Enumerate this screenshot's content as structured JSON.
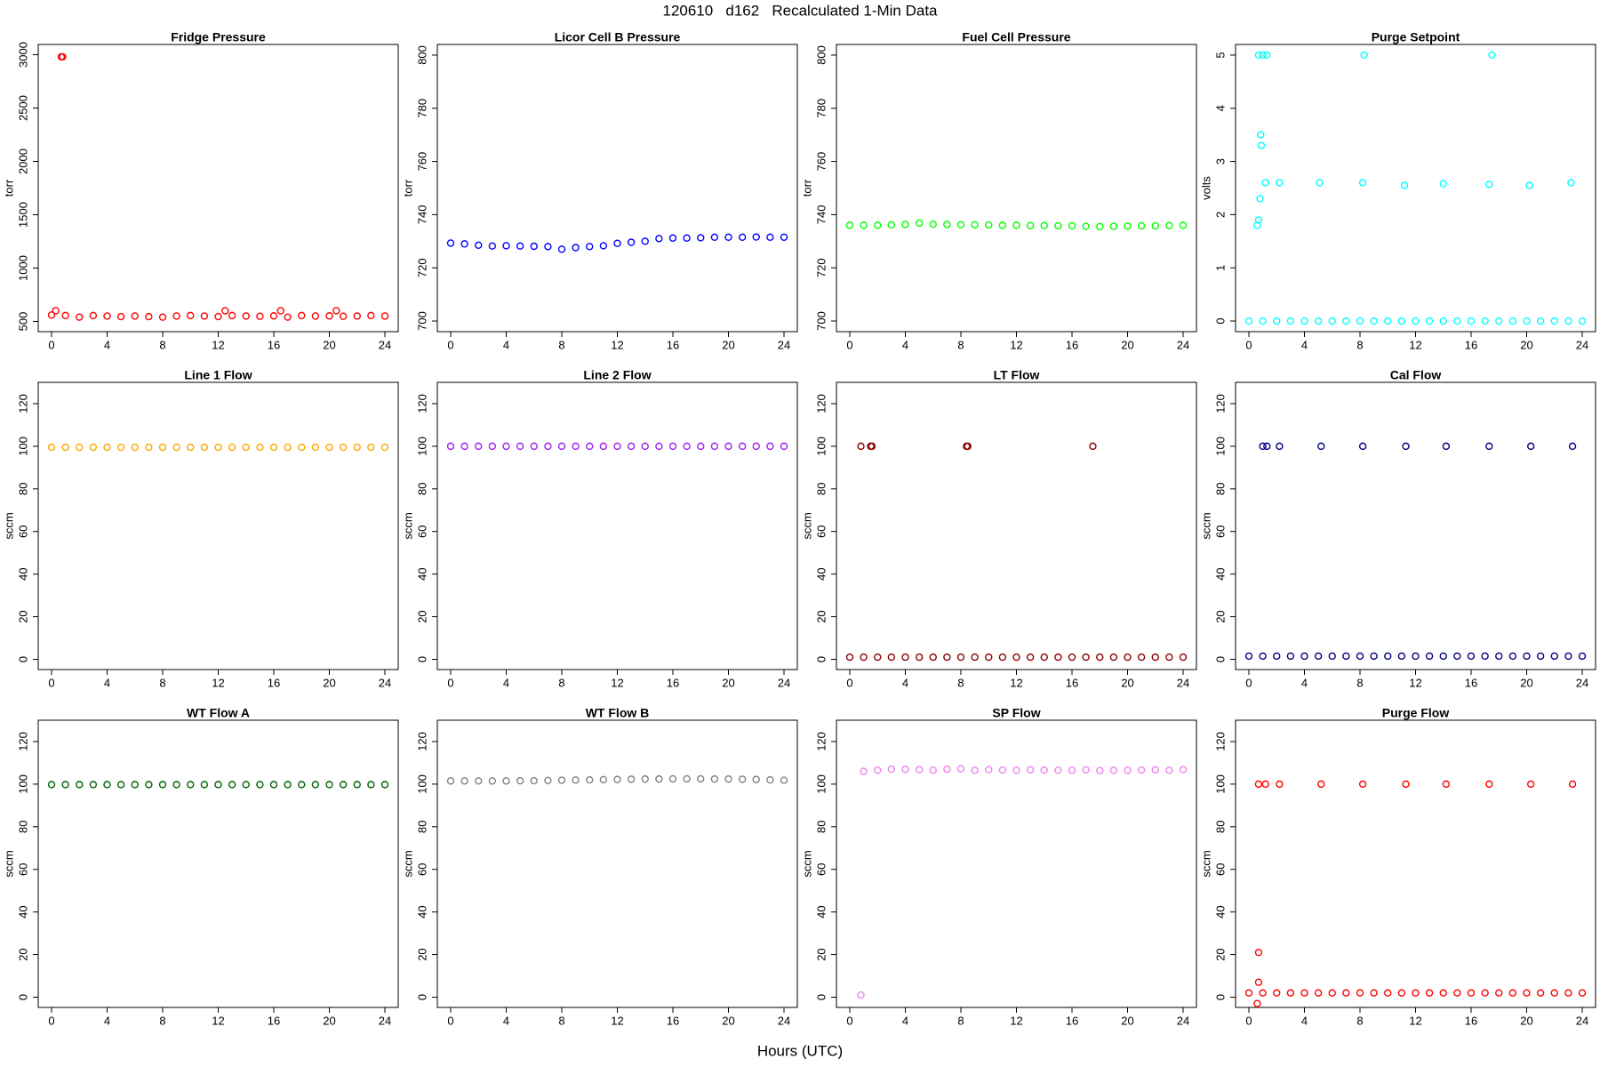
{
  "title": "120610   d162   Recalculated 1-Min Data",
  "x_label": "Hours (UTC)",
  "chart_data": [
    {
      "type": "scatter",
      "title": "Fridge Pressure",
      "y_label": "torr",
      "color": "#ff0000",
      "x": [
        0,
        1,
        2,
        3,
        4,
        5,
        6,
        7,
        8,
        9,
        10,
        11,
        12,
        13,
        14,
        15,
        16,
        17,
        18,
        19,
        20,
        21,
        22,
        23,
        24,
        0.3,
        0.7,
        0.8,
        12.5,
        16.5,
        20.5
      ],
      "values": [
        560,
        555,
        540,
        555,
        550,
        545,
        550,
        545,
        540,
        550,
        555,
        550,
        545,
        555,
        550,
        548,
        552,
        540,
        555,
        550,
        552,
        548,
        550,
        555,
        550,
        600,
        2980,
        2980,
        600,
        600,
        600
      ],
      "xlim": [
        -0.96,
        24.96
      ],
      "ylim": [
        404,
        3096
      ],
      "xticks": [
        0,
        4,
        8,
        12,
        16,
        20,
        24
      ],
      "yticks": [
        500,
        1000,
        1500,
        2000,
        2500,
        3000
      ]
    },
    {
      "type": "scatter",
      "title": "Licor Cell B Pressure",
      "y_label": "torr",
      "color": "#0000ff",
      "x": [
        0,
        1,
        2,
        3,
        4,
        5,
        6,
        7,
        8,
        9,
        10,
        11,
        12,
        13,
        14,
        15,
        16,
        17,
        18,
        19,
        20,
        21,
        22,
        23,
        24
      ],
      "values": [
        729.3,
        729,
        728.5,
        728.2,
        728.3,
        728.2,
        728.1,
        728,
        727,
        727.6,
        728,
        728.3,
        729.2,
        729.6,
        730,
        731,
        731.2,
        731.2,
        731.3,
        731.5,
        731.5,
        731.5,
        731.6,
        731.5,
        731.5
      ],
      "xlim": [
        -0.96,
        24.96
      ],
      "ylim": [
        696,
        804
      ],
      "xticks": [
        0,
        4,
        8,
        12,
        16,
        20,
        24
      ],
      "yticks": [
        700,
        720,
        740,
        760,
        780,
        800
      ]
    },
    {
      "type": "scatter",
      "title": "Fuel Cell Pressure",
      "y_label": "torr",
      "color": "#00ff00",
      "x": [
        0,
        1,
        2,
        3,
        4,
        5,
        6,
        7,
        8,
        9,
        10,
        11,
        12,
        13,
        14,
        15,
        16,
        17,
        18,
        19,
        20,
        21,
        22,
        23,
        24
      ],
      "values": [
        736,
        736,
        736,
        736.2,
        736.3,
        736.8,
        736.4,
        736.3,
        736.2,
        736.2,
        736.1,
        736,
        736,
        735.9,
        735.9,
        735.8,
        735.8,
        735.6,
        735.5,
        735.6,
        735.7,
        735.8,
        735.8,
        735.9,
        736
      ],
      "xlim": [
        -0.96,
        24.96
      ],
      "ylim": [
        696,
        804
      ],
      "xticks": [
        0,
        4,
        8,
        12,
        16,
        20,
        24
      ],
      "yticks": [
        700,
        720,
        740,
        760,
        780,
        800
      ]
    },
    {
      "type": "scatter",
      "title": "Purge Setpoint",
      "y_label": "volts",
      "color": "#00ffff",
      "x": [
        0,
        1,
        2,
        3,
        4,
        5,
        6,
        7,
        8,
        9,
        10,
        11,
        12,
        13,
        14,
        15,
        16,
        17,
        18,
        19,
        20,
        21,
        22,
        23,
        24,
        0.7,
        1.0,
        1.3,
        0.7,
        0.6,
        0.8,
        0.9,
        0.85,
        1.2,
        2.2,
        5.1,
        8.3,
        8.2,
        11.2,
        14,
        17.5,
        17.3,
        20.2,
        23.2
      ],
      "values": [
        0,
        0,
        0,
        0,
        0,
        0,
        0,
        0,
        0,
        0,
        0,
        0,
        0,
        0,
        0,
        0,
        0,
        0,
        0,
        0,
        0,
        0,
        0,
        0,
        0,
        5,
        5,
        5,
        1.9,
        1.8,
        2.3,
        3.3,
        3.5,
        2.6,
        2.6,
        2.6,
        5,
        2.6,
        2.55,
        2.58,
        5,
        2.57,
        2.55,
        2.6
      ],
      "xlim": [
        -0.96,
        24.96
      ],
      "ylim": [
        -0.2,
        5.2
      ],
      "xticks": [
        0,
        4,
        8,
        12,
        16,
        20,
        24
      ],
      "yticks": [
        0,
        1,
        2,
        3,
        4,
        5
      ]
    },
    {
      "type": "scatter",
      "title": "Line 1 Flow",
      "y_label": "sccm",
      "color": "#ffa500",
      "x": [
        0,
        1,
        2,
        3,
        4,
        5,
        6,
        7,
        8,
        9,
        10,
        11,
        12,
        13,
        14,
        15,
        16,
        17,
        18,
        19,
        20,
        21,
        22,
        23,
        24
      ],
      "values": [
        99.5,
        99.5,
        99.5,
        99.5,
        99.5,
        99.5,
        99.5,
        99.5,
        99.5,
        99.5,
        99.5,
        99.5,
        99.5,
        99.5,
        99.5,
        99.5,
        99.5,
        99.5,
        99.5,
        99.5,
        99.5,
        99.5,
        99.5,
        99.5,
        99.5
      ],
      "xlim": [
        -0.96,
        24.96
      ],
      "ylim": [
        -4.8,
        130
      ],
      "xticks": [
        0,
        4,
        8,
        12,
        16,
        20,
        24
      ],
      "yticks": [
        0,
        20,
        40,
        60,
        80,
        100,
        120
      ]
    },
    {
      "type": "scatter",
      "title": "Line 2 Flow",
      "y_label": "sccm",
      "color": "#a020f0",
      "x": [
        0,
        1,
        2,
        3,
        4,
        5,
        6,
        7,
        8,
        9,
        10,
        11,
        12,
        13,
        14,
        15,
        16,
        17,
        18,
        19,
        20,
        21,
        22,
        23,
        24
      ],
      "values": [
        100,
        100,
        100,
        100,
        100,
        100,
        100,
        100,
        100,
        100,
        100,
        100,
        100,
        100,
        100,
        100,
        100,
        100,
        100,
        100,
        100,
        100,
        100,
        100,
        100
      ],
      "xlim": [
        -0.96,
        24.96
      ],
      "ylim": [
        -4.8,
        130
      ],
      "xticks": [
        0,
        4,
        8,
        12,
        16,
        20,
        24
      ],
      "yticks": [
        0,
        20,
        40,
        60,
        80,
        100,
        120
      ]
    },
    {
      "type": "scatter",
      "title": "LT Flow",
      "y_label": "sccm",
      "color": "#8b0000",
      "x": [
        0,
        1,
        2,
        3,
        4,
        5,
        6,
        7,
        8,
        9,
        10,
        11,
        12,
        13,
        14,
        15,
        16,
        17,
        18,
        19,
        20,
        21,
        22,
        23,
        24,
        0.8,
        1.5,
        1.6,
        8.4,
        8.5,
        17.5
      ],
      "values": [
        1,
        1,
        1,
        1,
        1,
        1,
        1,
        1,
        1,
        1,
        1,
        1,
        1,
        1,
        1,
        1,
        1,
        1,
        1,
        1,
        1,
        1,
        1,
        1,
        1,
        100,
        100,
        100,
        100,
        100,
        100
      ],
      "xlim": [
        -0.96,
        24.96
      ],
      "ylim": [
        -4.8,
        130
      ],
      "xticks": [
        0,
        4,
        8,
        12,
        16,
        20,
        24
      ],
      "yticks": [
        0,
        20,
        40,
        60,
        80,
        100,
        120
      ]
    },
    {
      "type": "scatter",
      "title": "Cal Flow",
      "y_label": "sccm",
      "color": "#000080",
      "x": [
        0,
        1,
        2,
        3,
        4,
        5,
        6,
        7,
        8,
        9,
        10,
        11,
        12,
        13,
        14,
        15,
        16,
        17,
        18,
        19,
        20,
        21,
        22,
        23,
        24,
        1.0,
        1.3,
        2.2,
        5.2,
        8.2,
        11.3,
        14.2,
        17.3,
        20.3,
        23.3
      ],
      "values": [
        1.5,
        1.5,
        1.5,
        1.5,
        1.5,
        1.5,
        1.5,
        1.5,
        1.5,
        1.5,
        1.5,
        1.5,
        1.5,
        1.5,
        1.5,
        1.5,
        1.5,
        1.5,
        1.5,
        1.5,
        1.5,
        1.5,
        1.5,
        1.5,
        1.5,
        100,
        100,
        100,
        100,
        100,
        100,
        100,
        100,
        100,
        100
      ],
      "xlim": [
        -0.96,
        24.96
      ],
      "ylim": [
        -4.8,
        130
      ],
      "xticks": [
        0,
        4,
        8,
        12,
        16,
        20,
        24
      ],
      "yticks": [
        0,
        20,
        40,
        60,
        80,
        100,
        120
      ]
    },
    {
      "type": "scatter",
      "title": "WT Flow A",
      "y_label": "sccm",
      "color": "#006400",
      "x": [
        0,
        1,
        2,
        3,
        4,
        5,
        6,
        7,
        8,
        9,
        10,
        11,
        12,
        13,
        14,
        15,
        16,
        17,
        18,
        19,
        20,
        21,
        22,
        23,
        24
      ],
      "values": [
        99.8,
        99.8,
        99.8,
        99.8,
        99.8,
        99.8,
        99.8,
        99.8,
        99.8,
        99.8,
        99.8,
        99.8,
        99.8,
        99.8,
        99.8,
        99.8,
        99.8,
        99.8,
        99.8,
        99.8,
        99.8,
        99.8,
        99.8,
        99.8,
        99.8
      ],
      "xlim": [
        -0.96,
        24.96
      ],
      "ylim": [
        -4.8,
        130
      ],
      "xticks": [
        0,
        4,
        8,
        12,
        16,
        20,
        24
      ],
      "yticks": [
        0,
        20,
        40,
        60,
        80,
        100,
        120
      ]
    },
    {
      "type": "scatter",
      "title": "WT Flow B",
      "y_label": "sccm",
      "color": "#808080",
      "x": [
        0,
        1,
        2,
        3,
        4,
        5,
        6,
        7,
        8,
        9,
        10,
        11,
        12,
        13,
        14,
        15,
        16,
        17,
        18,
        19,
        20,
        21,
        22,
        23,
        24
      ],
      "values": [
        101.5,
        101.5,
        101.5,
        101.5,
        101.5,
        101.6,
        101.6,
        101.7,
        101.8,
        101.9,
        102,
        102.1,
        102.2,
        102.3,
        102.4,
        102.4,
        102.5,
        102.5,
        102.5,
        102.4,
        102.4,
        102.3,
        102.2,
        102,
        101.8
      ],
      "xlim": [
        -0.96,
        24.96
      ],
      "ylim": [
        -4.8,
        130
      ],
      "xticks": [
        0,
        4,
        8,
        12,
        16,
        20,
        24
      ],
      "yticks": [
        0,
        20,
        40,
        60,
        80,
        100,
        120
      ]
    },
    {
      "type": "scatter",
      "title": "SP Flow",
      "y_label": "sccm",
      "color": "#ee82ee",
      "x": [
        1,
        2,
        3,
        4,
        5,
        6,
        7,
        8,
        9,
        10,
        11,
        12,
        13,
        14,
        15,
        16,
        17,
        18,
        19,
        20,
        21,
        22,
        23,
        24,
        0.8
      ],
      "values": [
        106,
        106.5,
        107,
        107,
        106.8,
        106.5,
        107,
        107.2,
        106.5,
        106.8,
        106.6,
        106.5,
        106.7,
        106.6,
        106.5,
        106.5,
        106.7,
        106.4,
        106.5,
        106.5,
        106.6,
        106.7,
        106.5,
        106.8,
        1
      ],
      "xlim": [
        -0.96,
        24.96
      ],
      "ylim": [
        -4.8,
        130
      ],
      "xticks": [
        0,
        4,
        8,
        12,
        16,
        20,
        24
      ],
      "yticks": [
        0,
        20,
        40,
        60,
        80,
        100,
        120
      ]
    },
    {
      "type": "scatter",
      "title": "Purge Flow",
      "y_label": "sccm",
      "color": "#ff0000",
      "x": [
        0,
        1,
        2,
        3,
        4,
        5,
        6,
        7,
        8,
        9,
        10,
        11,
        12,
        13,
        14,
        15,
        16,
        17,
        18,
        19,
        20,
        21,
        22,
        23,
        24,
        0.7,
        1.2,
        2.2,
        5.2,
        8.2,
        11.3,
        14.2,
        17.3,
        20.3,
        23.3,
        0.7,
        0.7,
        0.6
      ],
      "values": [
        2,
        2,
        2,
        2,
        2,
        2,
        2,
        2,
        2,
        2,
        2,
        2,
        2,
        2,
        2,
        2,
        2,
        2,
        2,
        2,
        2,
        2,
        2,
        2,
        2,
        100,
        100,
        100,
        100,
        100,
        100,
        100,
        100,
        100,
        100,
        21,
        7,
        -3
      ],
      "xlim": [
        -0.96,
        24.96
      ],
      "ylim": [
        -4.8,
        130
      ],
      "xticks": [
        0,
        4,
        8,
        12,
        16,
        20,
        24
      ],
      "yticks": [
        0,
        20,
        40,
        60,
        80,
        100,
        120
      ]
    }
  ]
}
